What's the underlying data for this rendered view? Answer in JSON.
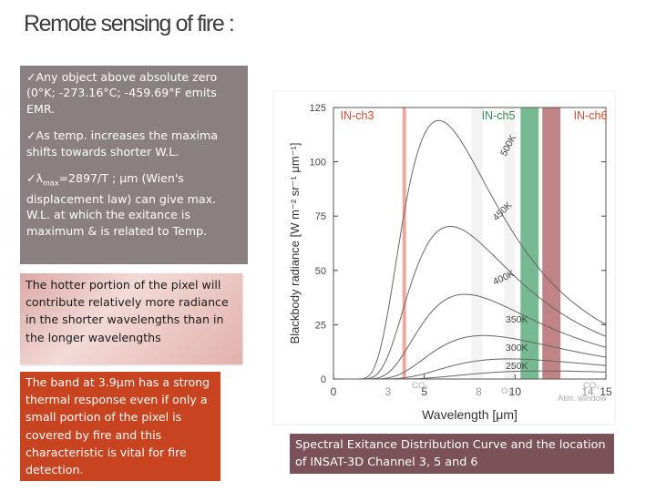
{
  "slide": {
    "title": "Remote sensing of fire :",
    "bullets": [
      "✓Any object above absolute zero (0°K; -273.16°C; -459.69°F emits EMR.",
      "✓As temp. increases the maxima shifts towards shorter W.L.",
      "=2897/T ; μm (Wien's displacement law) can give max. W.L. at which the exitance is maximum & is related to Temp."
    ],
    "bullet3_prefix": "✓λ",
    "bullet3_sub": "max",
    "pink_box": "The hotter portion of the pixel will contribute relatively more radiance in the shorter wavelengths than in the longer wavelengths",
    "orange_box": "The band at 3.9μm has a strong thermal response even if only a small portion of the pixel is covered by fire and this characteristic is vital for fire detection.",
    "caption": "Spectral Exitance Distribution Curve and the location of INSAT-3D Channel 3, 5 and 6"
  },
  "chart_data": {
    "type": "line",
    "xlabel": "Wavelength [μm]",
    "ylabel": "Blackbody radiance [W m⁻² sr⁻¹ μm⁻¹]",
    "xlim": [
      0,
      15
    ],
    "ylim": [
      0,
      125
    ],
    "xticks": [
      "0",
      "5",
      "10",
      "15"
    ],
    "xticks_extra": [
      "3",
      "8",
      "14"
    ],
    "yticks": [
      "0",
      "25",
      "50",
      "75",
      "100",
      "125"
    ],
    "channels": [
      {
        "name": "IN-ch3",
        "x_range": [
          3.8,
          4.0
        ],
        "color": "#e99a8a",
        "label_color": "#e2452c"
      },
      {
        "name": "IN-ch5",
        "x_range": [
          10.3,
          11.3
        ],
        "color": "#5fae7f",
        "label_color": "#3a8c57"
      },
      {
        "name": "IN-ch6",
        "x_range": [
          11.5,
          12.5
        ],
        "color": "#b56e6e",
        "label_color": "#e2452c"
      }
    ],
    "annotations": [
      "CO₂",
      "O₃",
      "CO₂",
      "Atm. window"
    ],
    "series": [
      {
        "name": "500K",
        "T": 500
      },
      {
        "name": "450K",
        "T": 450
      },
      {
        "name": "400K",
        "T": 400
      },
      {
        "name": "350K",
        "T": 350
      },
      {
        "name": "300K",
        "T": 300
      },
      {
        "name": "250K",
        "T": 250
      }
    ]
  }
}
